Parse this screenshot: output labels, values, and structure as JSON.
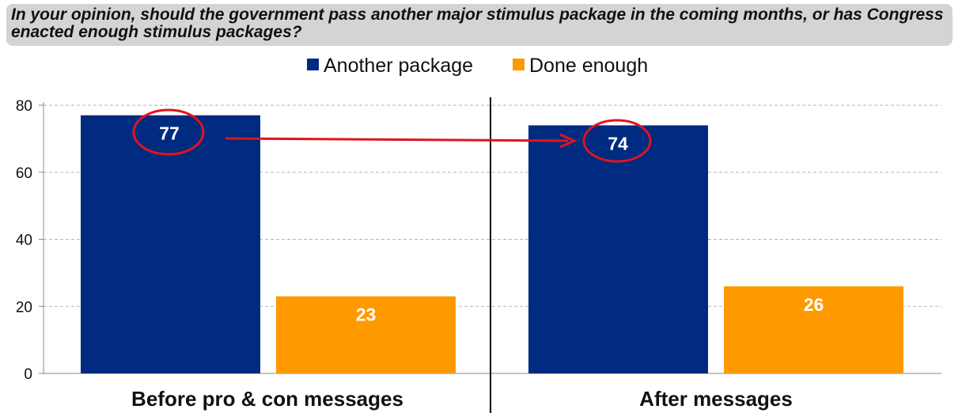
{
  "chart_data": {
    "type": "bar",
    "title": "In your opinion, should the government pass another major stimulus package in the coming months, or has Congress enacted enough stimulus packages?",
    "categories": [
      "Before pro & con messages",
      "After messages"
    ],
    "series": [
      {
        "name": "Another package",
        "values": [
          77,
          74
        ],
        "color": "#002b80"
      },
      {
        "name": "Done enough",
        "values": [
          23,
          26
        ],
        "color": "#ff9900"
      }
    ],
    "ylim": [
      0,
      80
    ],
    "yticks": [
      0,
      20,
      40,
      60,
      80
    ],
    "grid": true,
    "legend": "top-center",
    "annotations": {
      "circled_values": [
        77,
        74
      ],
      "arrow": "from 77 to 74",
      "highlight_color": "#e0141e"
    }
  }
}
